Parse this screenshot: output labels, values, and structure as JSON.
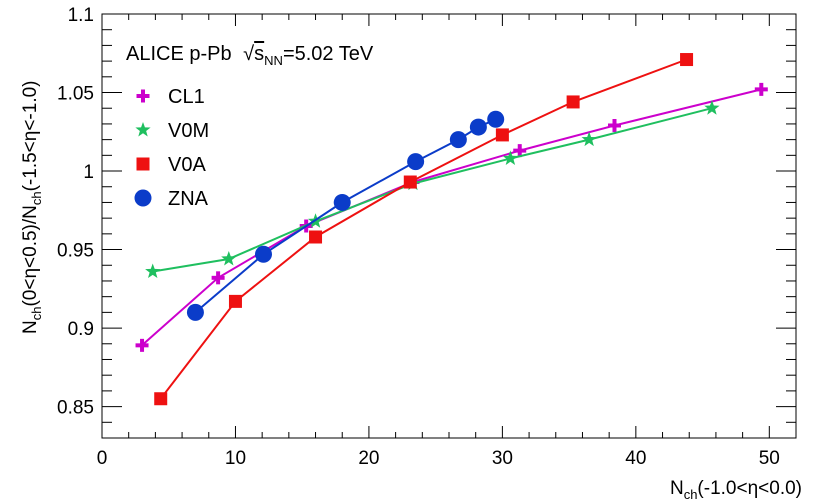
{
  "chart_data": {
    "type": "line",
    "header": "ALICE p-Pb",
    "energy": {
      "prefix": "√",
      "symbol": "s",
      "subscript": "NN",
      "value": "=5.02 TeV"
    },
    "xlabel": {
      "base": "N",
      "sub": "ch",
      "rest": "(-1.0<η<0.0)"
    },
    "ylabel": {
      "base1": "N",
      "sub1": "ch",
      "mid": "(0<η<0.5)/N",
      "sub2": "ch",
      "rest": "(-1.5<η<-1.0)"
    },
    "xlim": [
      0,
      52
    ],
    "ylim": [
      0.83,
      1.1
    ],
    "xticks": [
      0,
      10,
      20,
      30,
      40,
      50
    ],
    "xtick_labels": [
      "0",
      "10",
      "20",
      "30",
      "40",
      "50"
    ],
    "yticks": [
      0.85,
      0.9,
      0.95,
      1.0,
      1.05,
      1.1
    ],
    "ytick_labels": [
      "0.85",
      "0.9",
      "0.95",
      "1",
      "1.05",
      "1.1"
    ],
    "legend_position": "top-left",
    "series": [
      {
        "name": "CL1",
        "color": "#cc00cc",
        "marker": "cross",
        "x": [
          3.0,
          8.7,
          15.3,
          23.3,
          31.3,
          38.4,
          49.4
        ],
        "y": [
          0.889,
          0.932,
          0.965,
          0.993,
          1.013,
          1.029,
          1.052
        ]
      },
      {
        "name": "V0M",
        "color": "#1fbf5f",
        "marker": "star",
        "x": [
          3.8,
          9.5,
          16.0,
          23.3,
          30.6,
          36.5,
          45.7
        ],
        "y": [
          0.936,
          0.944,
          0.968,
          0.992,
          1.008,
          1.02,
          1.04
        ]
      },
      {
        "name": "V0A",
        "color": "#ee1111",
        "marker": "square",
        "x": [
          4.4,
          10.0,
          16.0,
          23.1,
          30.0,
          35.3,
          43.8
        ],
        "y": [
          0.855,
          0.917,
          0.958,
          0.993,
          1.023,
          1.044,
          1.071
        ]
      },
      {
        "name": "ZNA",
        "color": "#0b3cc9",
        "marker": "circle",
        "x": [
          7.0,
          12.1,
          18.0,
          23.5,
          26.7,
          28.2,
          29.5
        ],
        "y": [
          0.91,
          0.947,
          0.98,
          1.006,
          1.02,
          1.028,
          1.033
        ]
      }
    ]
  }
}
